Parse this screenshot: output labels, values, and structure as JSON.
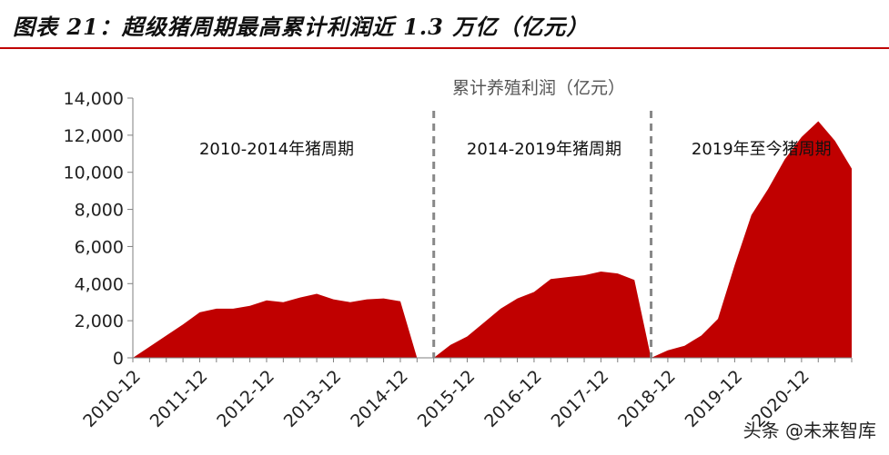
{
  "figure": {
    "title": "图表 21：超级猪周期最高累计利润近 1.3 万亿（亿元）",
    "watermark": "头条 @未来智库"
  },
  "colors": {
    "area": "#c00000",
    "title_rule": "#c00000",
    "divider": "#888888",
    "axis": "#7f7f7f",
    "text": "#222222"
  },
  "chart_data": {
    "type": "area",
    "title": "累计养殖利润（亿元）",
    "xlabel": "",
    "ylabel": "",
    "ylim": [
      0,
      14000
    ],
    "y_ticks": [
      0,
      2000,
      4000,
      6000,
      8000,
      10000,
      12000,
      14000
    ],
    "y_tick_labels": [
      "0",
      "2,000",
      "4,000",
      "6,000",
      "8,000",
      "10,000",
      "12,000",
      "14,000"
    ],
    "x_tick_labels": [
      "2010-12",
      "2011-12",
      "2012-12",
      "2013-12",
      "2014-12",
      "2015-12",
      "2016-12",
      "2017-12",
      "2018-12",
      "2019-12",
      "2020-12"
    ],
    "x_tick_quarter_index": [
      0,
      4,
      8,
      12,
      16,
      20,
      24,
      28,
      32,
      36,
      40
    ],
    "x_range_quarter_index": [
      0,
      43
    ],
    "grid": false,
    "legend": "none",
    "series": [
      {
        "name": "累计养殖利润",
        "segments": [
          {
            "quarter_index": [
              0,
              1,
              2,
              3,
              4,
              5,
              6,
              7,
              8,
              9,
              10,
              11,
              12,
              13,
              14,
              15,
              16,
              17
            ],
            "values": [
              0,
              600,
              1200,
              1800,
              2450,
              2650,
              2650,
              2800,
              3100,
              3000,
              3250,
              3450,
              3150,
              3000,
              3150,
              3200,
              3050,
              0
            ]
          },
          {
            "quarter_index": [
              18,
              19,
              20,
              21,
              22,
              23,
              24,
              25,
              26,
              27,
              28,
              29,
              30,
              31
            ],
            "values": [
              0,
              700,
              1150,
              1900,
              2650,
              3200,
              3550,
              4250,
              4350,
              4450,
              4650,
              4550,
              4200,
              0
            ]
          },
          {
            "quarter_index": [
              31,
              32,
              33,
              34,
              35,
              36,
              37,
              38,
              39,
              40,
              41,
              42,
              43
            ],
            "values": [
              0,
              400,
              650,
              1200,
              2100,
              5000,
              7700,
              9100,
              10700,
              11900,
              12750,
              11700,
              10200
            ]
          }
        ]
      }
    ],
    "dividers_quarter_index": [
      18,
      31
    ],
    "annotations": [
      {
        "text": "2010-2014年猪周期",
        "x_quarter_index": 8.6,
        "y": 11300
      },
      {
        "text": "2014-2019年猪周期",
        "x_quarter_index": 24.6,
        "y": 11300
      },
      {
        "text": "2019年至今猪周期",
        "x_quarter_index": 37.6,
        "y": 11300
      }
    ]
  }
}
